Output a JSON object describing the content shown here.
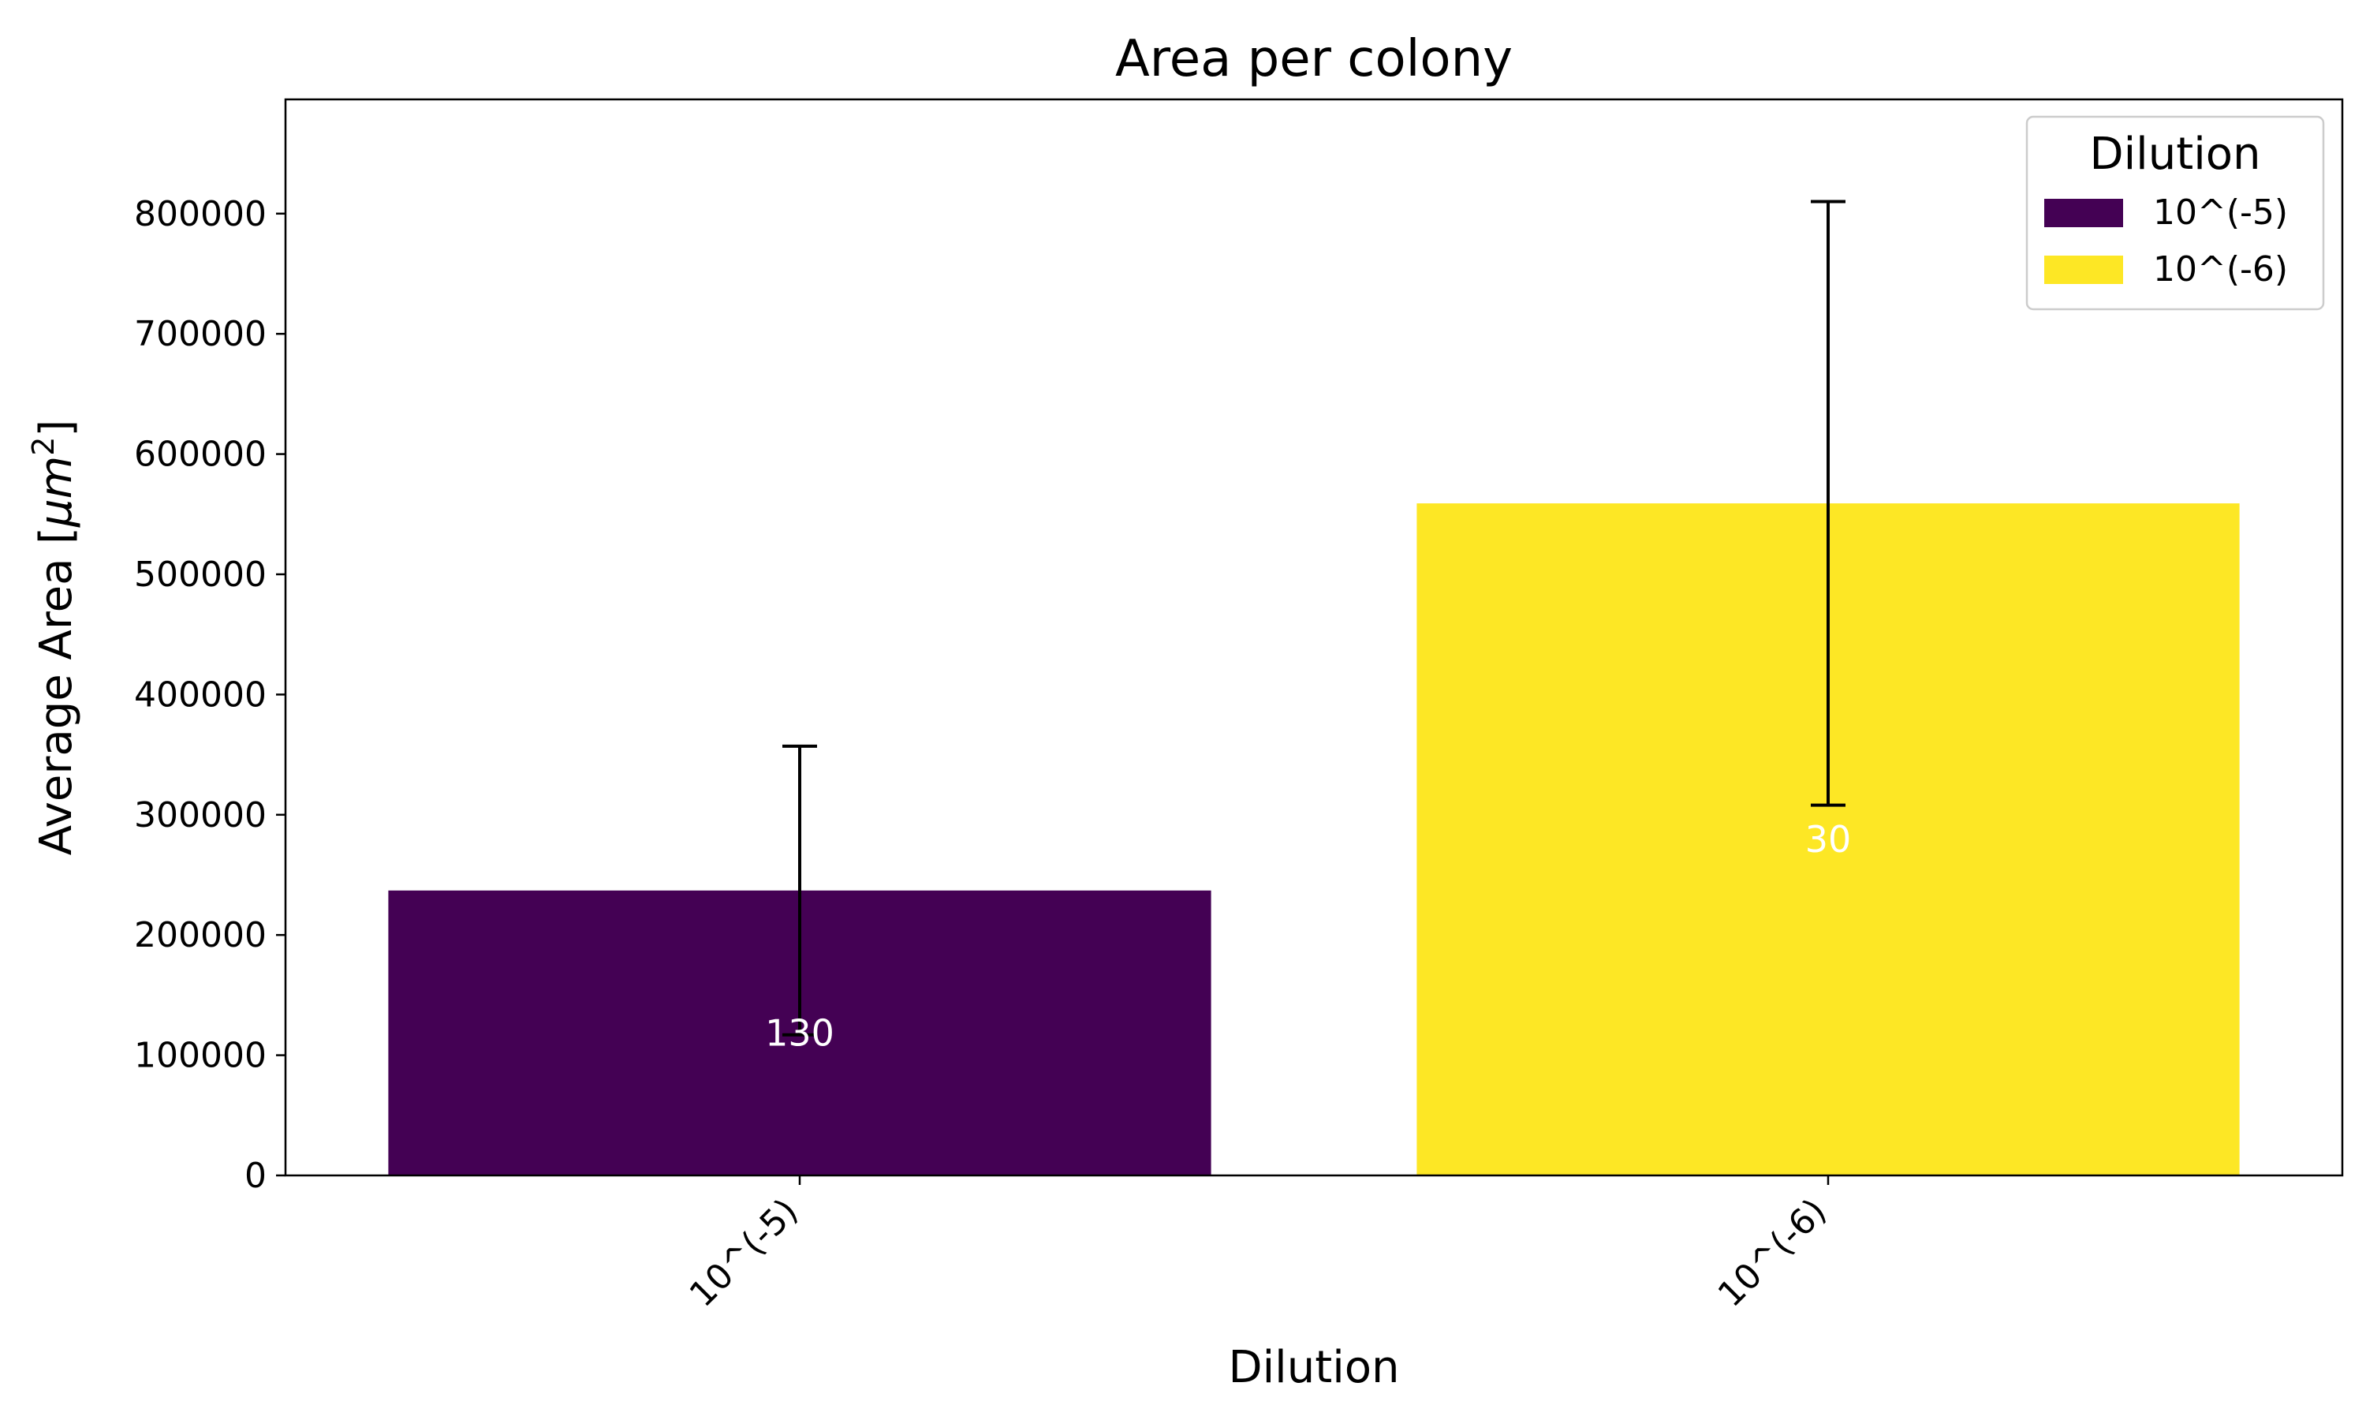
{
  "chart_data": {
    "type": "bar",
    "title": "Area per colony",
    "xlabel": "Dilution",
    "ylabel": "Average Area [μm²]",
    "ylim": [
      0,
      895000
    ],
    "yticks": [
      0,
      100000,
      200000,
      300000,
      400000,
      500000,
      600000,
      700000,
      800000
    ],
    "categories": [
      "10^(-5)",
      "10^(-6)"
    ],
    "values": [
      237000,
      559000
    ],
    "error_upper": [
      357000,
      810000
    ],
    "error_lower": [
      117000,
      308000
    ],
    "bar_labels": [
      "130",
      "30"
    ],
    "colors": [
      "#440154",
      "#fde725"
    ],
    "legend": {
      "title": "Dilution",
      "position": "top-right",
      "entries": [
        "10^(-5)",
        "10^(-6)"
      ]
    },
    "grid": false
  }
}
